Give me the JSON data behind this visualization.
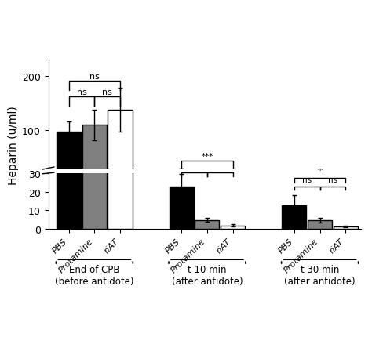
{
  "groups": [
    "End of CPB\n(before antidote)",
    "t 10 min\n(after antidote)",
    "t 30 min\n(after antidote)"
  ],
  "subgroups": [
    "PBS",
    "Protamine",
    "riAT"
  ],
  "bar_colors": [
    "#000000",
    "#808080",
    "#ffffff"
  ],
  "bar_edgecolors": [
    "#000000",
    "#000000",
    "#000000"
  ],
  "values": [
    [
      98,
      110,
      138
    ],
    [
      23,
      4.8,
      1.8
    ],
    [
      12.5,
      4.8,
      1.2
    ]
  ],
  "errors": [
    [
      18,
      28,
      40
    ],
    [
      6.5,
      1.0,
      0.6
    ],
    [
      5.5,
      1.3,
      0.5
    ]
  ],
  "ylabel": "Heparin (u/ml)",
  "bar_width": 0.25,
  "background_color": "#ffffff",
  "yticks_lower": [
    0,
    10,
    20,
    30
  ],
  "yticks_upper": [
    100,
    200
  ]
}
